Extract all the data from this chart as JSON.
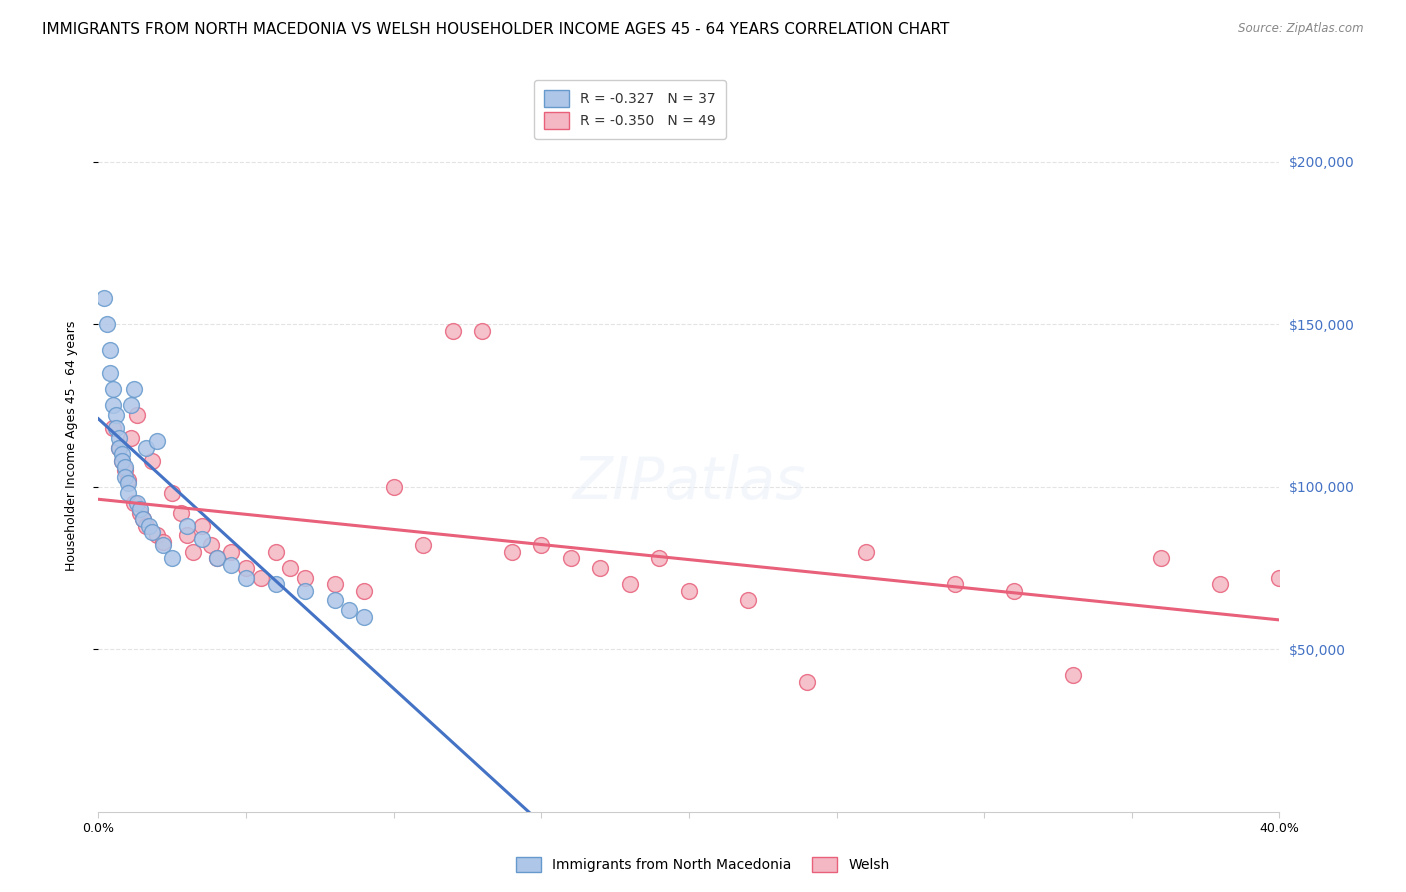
{
  "title": "IMMIGRANTS FROM NORTH MACEDONIA VS WELSH HOUSEHOLDER INCOME AGES 45 - 64 YEARS CORRELATION CHART",
  "source": "Source: ZipAtlas.com",
  "ylabel": "Householder Income Ages 45 - 64 years",
  "ytick_values": [
    50000,
    100000,
    150000,
    200000
  ],
  "ylim": [
    0,
    225000
  ],
  "xlim": [
    0.0,
    0.4
  ],
  "legend_r_blue": "R = -0.327",
  "legend_n_blue": "N = 37",
  "legend_r_pink": "R = -0.350",
  "legend_n_pink": "N = 49",
  "legend_label_blue": "Immigrants from North Macedonia",
  "legend_label_pink": "Welsh",
  "blue_scatter_x": [
    0.002,
    0.003,
    0.004,
    0.004,
    0.005,
    0.005,
    0.006,
    0.006,
    0.007,
    0.007,
    0.008,
    0.008,
    0.009,
    0.009,
    0.01,
    0.01,
    0.011,
    0.012,
    0.013,
    0.014,
    0.015,
    0.016,
    0.017,
    0.018,
    0.02,
    0.022,
    0.025,
    0.03,
    0.035,
    0.04,
    0.045,
    0.05,
    0.06,
    0.07,
    0.08,
    0.085,
    0.09
  ],
  "blue_scatter_y": [
    158000,
    150000,
    142000,
    135000,
    130000,
    125000,
    122000,
    118000,
    115000,
    112000,
    110000,
    108000,
    106000,
    103000,
    101000,
    98000,
    125000,
    130000,
    95000,
    93000,
    90000,
    112000,
    88000,
    86000,
    114000,
    82000,
    78000,
    88000,
    84000,
    78000,
    76000,
    72000,
    70000,
    68000,
    65000,
    62000,
    60000
  ],
  "pink_scatter_x": [
    0.005,
    0.007,
    0.008,
    0.009,
    0.01,
    0.011,
    0.012,
    0.013,
    0.014,
    0.015,
    0.016,
    0.018,
    0.02,
    0.022,
    0.025,
    0.028,
    0.03,
    0.032,
    0.035,
    0.038,
    0.04,
    0.045,
    0.05,
    0.055,
    0.06,
    0.065,
    0.07,
    0.08,
    0.09,
    0.1,
    0.11,
    0.12,
    0.13,
    0.14,
    0.15,
    0.16,
    0.17,
    0.18,
    0.19,
    0.2,
    0.22,
    0.24,
    0.26,
    0.29,
    0.31,
    0.33,
    0.36,
    0.38,
    0.4
  ],
  "pink_scatter_y": [
    118000,
    112000,
    108000,
    105000,
    102000,
    115000,
    95000,
    122000,
    92000,
    90000,
    88000,
    108000,
    85000,
    83000,
    98000,
    92000,
    85000,
    80000,
    88000,
    82000,
    78000,
    80000,
    75000,
    72000,
    80000,
    75000,
    72000,
    70000,
    68000,
    100000,
    82000,
    148000,
    148000,
    80000,
    82000,
    78000,
    75000,
    70000,
    78000,
    68000,
    65000,
    40000,
    80000,
    70000,
    68000,
    42000,
    78000,
    70000,
    72000
  ],
  "blue_line_color": "#4472C4",
  "blue_scatter_color": "#AEC6E8",
  "blue_scatter_edge": "#6699CC",
  "pink_line_color": "#E8607A",
  "pink_scatter_color": "#F4B8C4",
  "pink_scatter_edge": "#E8607A",
  "dashed_line_color": "#99BBDD",
  "grid_color": "#DDDDDD",
  "right_axis_color": "#4472C4",
  "background_color": "#FFFFFF",
  "title_fontsize": 11,
  "axis_label_fontsize": 9,
  "blue_line_x_end": 0.2,
  "dashed_line_x_start": 0.2
}
